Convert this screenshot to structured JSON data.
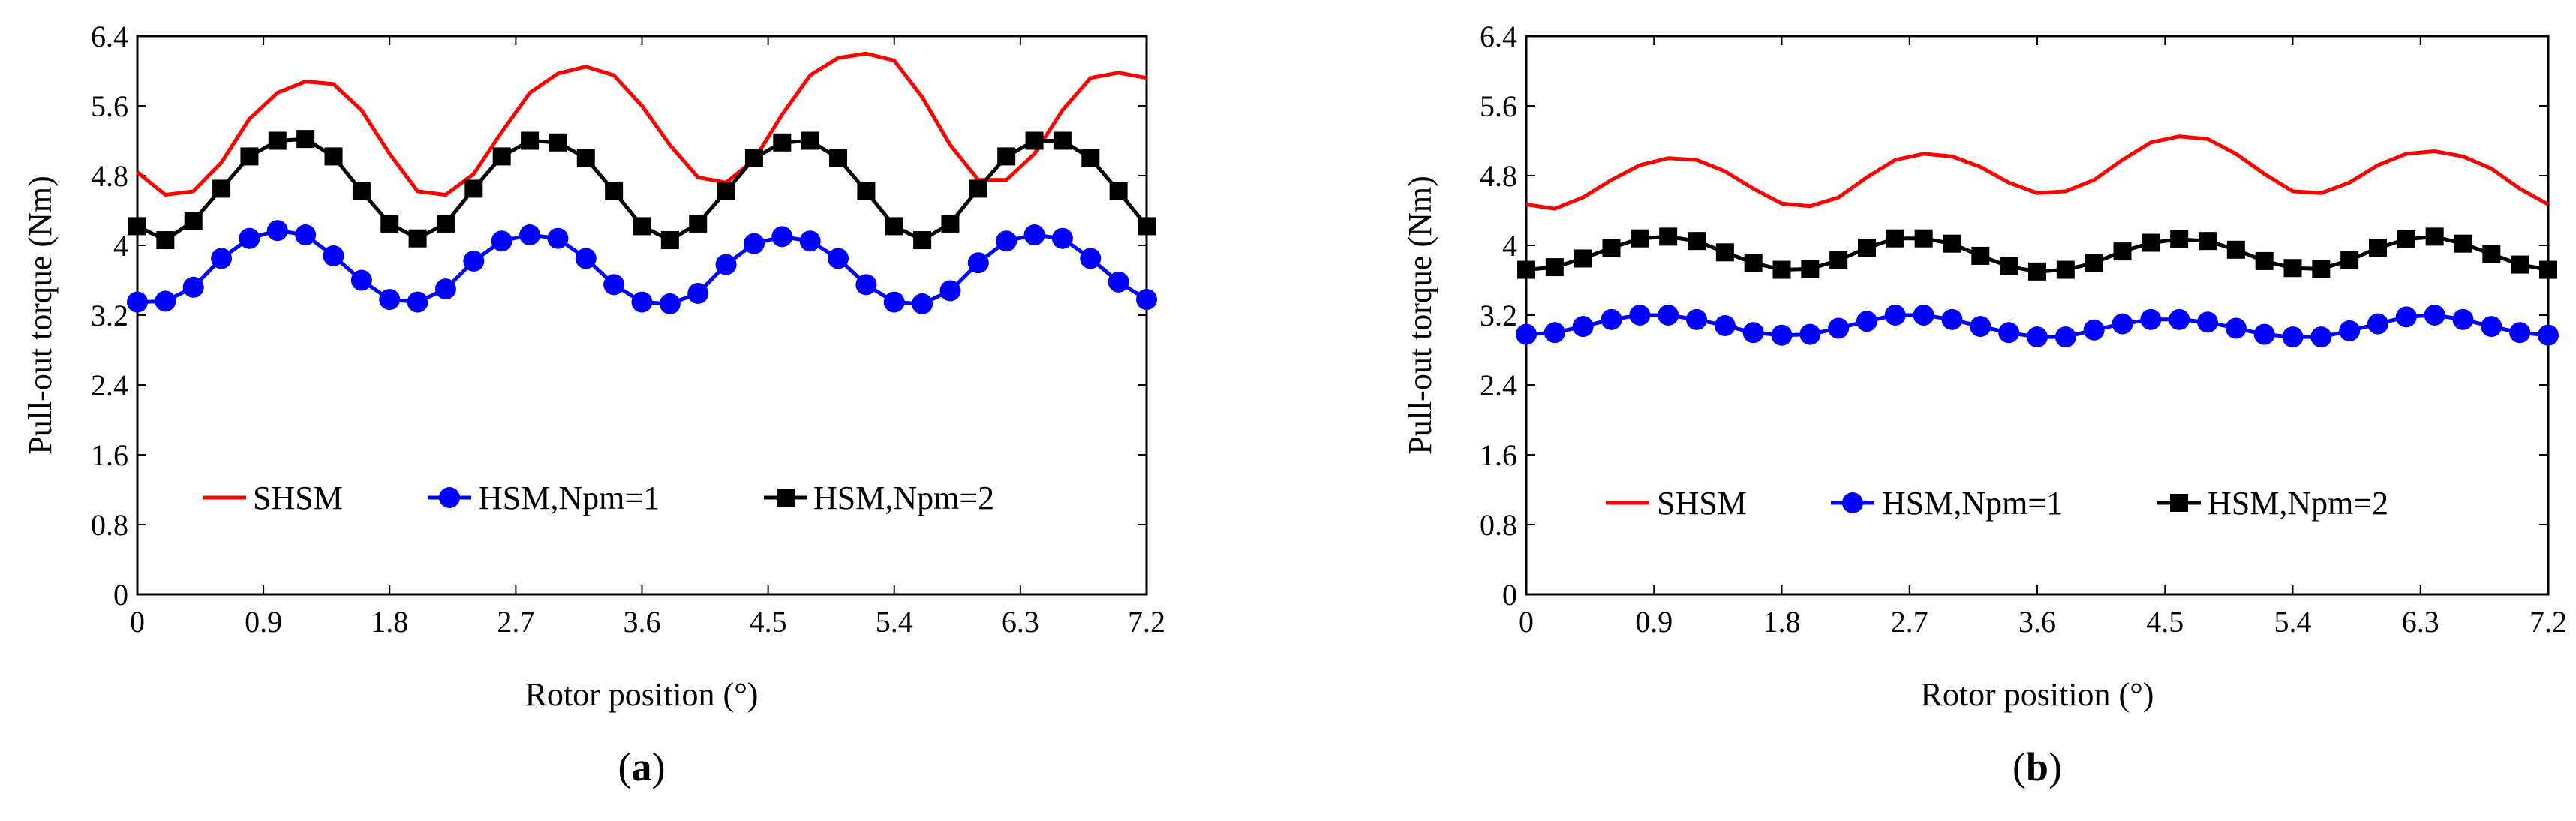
{
  "chart_data": [
    {
      "type": "line",
      "panel_label": "a",
      "xlabel": "Rotor position (°)",
      "ylabel": "Pull-out torque (Nm)",
      "xlim": [
        0,
        7.2
      ],
      "ylim": [
        0,
        6.4
      ],
      "x_ticks": [
        "0",
        "0.9",
        "1.8",
        "2.7",
        "3.6",
        "4.5",
        "5.4",
        "6.3",
        "7.2"
      ],
      "y_ticks": [
        "0",
        "0.8",
        "1.6",
        "2.4",
        "3.2",
        "4",
        "4.8",
        "5.6",
        "6.4"
      ],
      "legend": [
        "SHSM",
        "HSM,Npm=1",
        "HSM,Npm=2"
      ],
      "x": [
        0,
        0.2,
        0.4,
        0.6,
        0.8,
        1.0,
        1.2,
        1.4,
        1.6,
        1.8,
        2.0,
        2.2,
        2.4,
        2.6,
        2.8,
        3.0,
        3.2,
        3.4,
        3.6,
        3.8,
        4.0,
        4.2,
        4.4,
        4.6,
        4.8,
        5.0,
        5.2,
        5.4,
        5.6,
        5.8,
        6.0,
        6.2,
        6.4,
        6.6,
        6.8,
        7.0,
        7.2
      ],
      "series": [
        {
          "name": "SHSM",
          "color": "#ff0000",
          "marker": "none",
          "values": [
            4.84,
            4.58,
            4.62,
            4.95,
            5.45,
            5.75,
            5.88,
            5.85,
            5.55,
            5.05,
            4.62,
            4.58,
            4.82,
            5.3,
            5.75,
            5.97,
            6.05,
            5.95,
            5.6,
            5.15,
            4.78,
            4.72,
            4.98,
            5.5,
            5.95,
            6.15,
            6.2,
            6.12,
            5.7,
            5.15,
            4.75,
            4.75,
            5.05,
            5.55,
            5.92,
            5.98,
            5.92
          ]
        },
        {
          "name": "HSM,Npm=1",
          "color": "#0000ff",
          "marker": "circle",
          "values": [
            3.35,
            3.36,
            3.52,
            3.85,
            4.08,
            4.17,
            4.12,
            3.88,
            3.6,
            3.38,
            3.35,
            3.5,
            3.82,
            4.05,
            4.12,
            4.08,
            3.85,
            3.55,
            3.35,
            3.33,
            3.45,
            3.78,
            4.02,
            4.1,
            4.05,
            3.85,
            3.55,
            3.35,
            3.33,
            3.48,
            3.8,
            4.05,
            4.12,
            4.08,
            3.85,
            3.58,
            3.38
          ]
        },
        {
          "name": "HSM,Npm=2",
          "color": "#000000",
          "marker": "square",
          "values": [
            4.22,
            4.06,
            4.28,
            4.65,
            5.02,
            5.2,
            5.22,
            5.02,
            4.62,
            4.25,
            4.08,
            4.25,
            4.65,
            5.02,
            5.2,
            5.18,
            5.0,
            4.62,
            4.22,
            4.06,
            4.25,
            4.62,
            5.0,
            5.18,
            5.2,
            5.0,
            4.62,
            4.22,
            4.06,
            4.25,
            4.65,
            5.02,
            5.2,
            5.2,
            5.0,
            4.62,
            4.22
          ]
        }
      ]
    },
    {
      "type": "line",
      "panel_label": "b",
      "xlabel": "Rotor position (°)",
      "ylabel": "Pull-out torque (Nm)",
      "xlim": [
        0,
        7.2
      ],
      "ylim": [
        0,
        6.4
      ],
      "x_ticks": [
        "0",
        "0.9",
        "1.8",
        "2.7",
        "3.6",
        "4.5",
        "5.4",
        "6.3",
        "7.2"
      ],
      "y_ticks": [
        "0",
        "0.8",
        "1.6",
        "2.4",
        "3.2",
        "4",
        "4.8",
        "5.6",
        "6.4"
      ],
      "legend": [
        "SHSM",
        "HSM,Npm=1",
        "HSM,Npm=2"
      ],
      "x": [
        0,
        0.2,
        0.4,
        0.6,
        0.8,
        1.0,
        1.2,
        1.4,
        1.6,
        1.8,
        2.0,
        2.2,
        2.4,
        2.6,
        2.8,
        3.0,
        3.2,
        3.4,
        3.6,
        3.8,
        4.0,
        4.2,
        4.4,
        4.6,
        4.8,
        5.0,
        5.2,
        5.4,
        5.6,
        5.8,
        6.0,
        6.2,
        6.4,
        6.6,
        6.8,
        7.0,
        7.2
      ],
      "series": [
        {
          "name": "SHSM",
          "color": "#ff0000",
          "marker": "none",
          "values": [
            4.47,
            4.42,
            4.55,
            4.75,
            4.92,
            5.0,
            4.98,
            4.85,
            4.65,
            4.48,
            4.45,
            4.55,
            4.78,
            4.98,
            5.05,
            5.02,
            4.9,
            4.72,
            4.6,
            4.62,
            4.75,
            4.98,
            5.18,
            5.25,
            5.22,
            5.05,
            4.82,
            4.62,
            4.6,
            4.72,
            4.92,
            5.05,
            5.08,
            5.02,
            4.88,
            4.65,
            4.47
          ]
        },
        {
          "name": "HSM,Npm=1",
          "color": "#0000ff",
          "marker": "circle",
          "values": [
            2.98,
            3.0,
            3.07,
            3.15,
            3.2,
            3.2,
            3.15,
            3.08,
            3.0,
            2.97,
            2.98,
            3.05,
            3.13,
            3.2,
            3.2,
            3.15,
            3.07,
            3.0,
            2.95,
            2.95,
            3.03,
            3.1,
            3.15,
            3.15,
            3.12,
            3.05,
            2.98,
            2.95,
            2.95,
            3.02,
            3.1,
            3.18,
            3.2,
            3.15,
            3.07,
            3.0,
            2.97
          ]
        },
        {
          "name": "HSM,Npm=2",
          "color": "#000000",
          "marker": "square",
          "values": [
            3.72,
            3.75,
            3.85,
            3.97,
            4.08,
            4.1,
            4.05,
            3.92,
            3.8,
            3.72,
            3.73,
            3.83,
            3.97,
            4.08,
            4.08,
            4.02,
            3.88,
            3.76,
            3.7,
            3.72,
            3.8,
            3.93,
            4.03,
            4.07,
            4.05,
            3.95,
            3.82,
            3.74,
            3.73,
            3.83,
            3.97,
            4.07,
            4.1,
            4.02,
            3.9,
            3.78,
            3.72
          ]
        }
      ]
    }
  ]
}
